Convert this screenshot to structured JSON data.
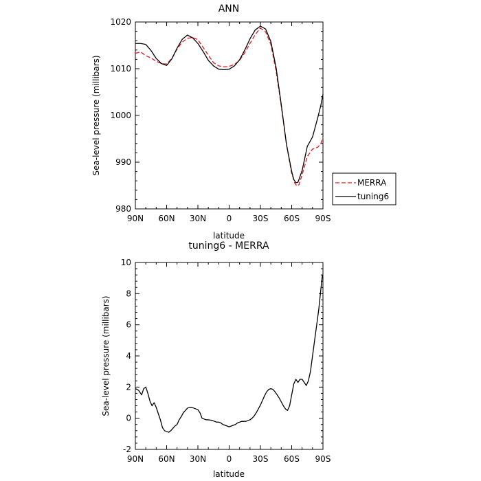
{
  "chart_data": [
    {
      "type": "line",
      "title": "ANN",
      "xlabel": "latitude",
      "ylabel": "Sea-level pressure (millibars)",
      "xlim": [
        90,
        -90
      ],
      "ylim": [
        980,
        1020
      ],
      "xticks": [
        {
          "value": 90,
          "label": "90N"
        },
        {
          "value": 60,
          "label": "60N"
        },
        {
          "value": 30,
          "label": "30N"
        },
        {
          "value": 0,
          "label": "0"
        },
        {
          "value": -30,
          "label": "30S"
        },
        {
          "value": -60,
          "label": "60S"
        },
        {
          "value": -90,
          "label": "90S"
        }
      ],
      "yticks": [
        {
          "value": 980,
          "label": "980"
        },
        {
          "value": 990,
          "label": "990"
        },
        {
          "value": 1000,
          "label": "1000"
        },
        {
          "value": 1010,
          "label": "1010"
        },
        {
          "value": 1020,
          "label": "1020"
        }
      ],
      "legend": {
        "placement": "right-outside",
        "entries": [
          "MERRA",
          "tuning6"
        ]
      },
      "series": [
        {
          "name": "MERRA",
          "color": "#e8141b",
          "dash": "dashed",
          "x": [
            90,
            85,
            80,
            75,
            70,
            65,
            60,
            55,
            50,
            45,
            40,
            35,
            30,
            25,
            20,
            15,
            10,
            5,
            0,
            -5,
            -10,
            -15,
            -20,
            -25,
            -30,
            -35,
            -40,
            -45,
            -50,
            -55,
            -60,
            -63,
            -65,
            -67,
            -70,
            -75,
            -80,
            -85,
            -88,
            -90
          ],
          "y": [
            1013.3,
            1013.6,
            1012.8,
            1012.3,
            1011.6,
            1011.1,
            1011.0,
            1012.2,
            1014.2,
            1015.7,
            1016.5,
            1016.7,
            1016.2,
            1014.6,
            1012.9,
            1011.3,
            1010.6,
            1010.4,
            1010.5,
            1010.9,
            1011.8,
            1013.4,
            1015.4,
            1017.3,
            1018.7,
            1017.9,
            1015.2,
            1009.6,
            1002.0,
            993.8,
            987.6,
            985.5,
            984.9,
            985.2,
            987.3,
            991.2,
            992.8,
            993.2,
            994.0,
            995.3
          ]
        },
        {
          "name": "tuning6",
          "color": "#000000",
          "dash": "solid",
          "x": [
            90,
            85,
            80,
            75,
            70,
            65,
            60,
            55,
            50,
            45,
            40,
            35,
            30,
            25,
            20,
            15,
            10,
            5,
            0,
            -5,
            -10,
            -15,
            -20,
            -25,
            -30,
            -35,
            -40,
            -45,
            -50,
            -55,
            -60,
            -62,
            -64,
            -66,
            -70,
            -75,
            -80,
            -85,
            -88,
            -90
          ],
          "y": [
            1015.4,
            1015.4,
            1015.2,
            1013.9,
            1012.2,
            1011.1,
            1010.7,
            1012.1,
            1014.4,
            1016.3,
            1017.2,
            1016.6,
            1015.4,
            1013.7,
            1011.8,
            1010.6,
            1009.9,
            1009.8,
            1009.9,
            1010.6,
            1011.9,
            1014.0,
            1016.4,
            1018.3,
            1019.1,
            1018.5,
            1015.8,
            1010.3,
            1002.3,
            993.8,
            988.0,
            986.3,
            985.6,
            985.7,
            988.2,
            993.4,
            995.4,
            999.5,
            1002.2,
            1004.5
          ]
        }
      ]
    },
    {
      "type": "line",
      "title": "tuning6 - MERRA",
      "xlabel": "latitude",
      "ylabel": "Sea-level pressure (millibars)",
      "xlim": [
        90,
        -90
      ],
      "ylim": [
        -2,
        10
      ],
      "xticks": [
        {
          "value": 90,
          "label": "90N"
        },
        {
          "value": 60,
          "label": "60N"
        },
        {
          "value": 30,
          "label": "30N"
        },
        {
          "value": 0,
          "label": "0"
        },
        {
          "value": -30,
          "label": "30S"
        },
        {
          "value": -60,
          "label": "60S"
        },
        {
          "value": -90,
          "label": "90S"
        }
      ],
      "yticks": [
        {
          "value": -2,
          "label": "-2"
        },
        {
          "value": 0,
          "label": "0"
        },
        {
          "value": 2,
          "label": "2"
        },
        {
          "value": 4,
          "label": "4"
        },
        {
          "value": 6,
          "label": "6"
        },
        {
          "value": 8,
          "label": "8"
        },
        {
          "value": 10,
          "label": "10"
        }
      ],
      "series": [
        {
          "name": "",
          "color": "#000000",
          "dash": "solid",
          "x": [
            90,
            87,
            84,
            82,
            80,
            78,
            76,
            74,
            72,
            70,
            68,
            66,
            64,
            62,
            60,
            58,
            56,
            54,
            52,
            50,
            48,
            46,
            44,
            42,
            40,
            38,
            36,
            34,
            32,
            30,
            28,
            26,
            24,
            22,
            20,
            18,
            16,
            14,
            12,
            10,
            8,
            6,
            4,
            2,
            0,
            -2,
            -4,
            -6,
            -8,
            -10,
            -12,
            -14,
            -16,
            -18,
            -20,
            -22,
            -24,
            -26,
            -28,
            -30,
            -32,
            -34,
            -36,
            -38,
            -40,
            -42,
            -44,
            -46,
            -48,
            -50,
            -52,
            -54,
            -56,
            -58,
            -60,
            -62,
            -64,
            -66,
            -68,
            -70,
            -72,
            -74,
            -76,
            -78,
            -80,
            -82,
            -84,
            -86,
            -88,
            -89.5
          ],
          "y": [
            1.9,
            1.8,
            1.5,
            1.9,
            2.0,
            1.6,
            1.1,
            0.8,
            1.0,
            0.7,
            0.3,
            -0.1,
            -0.6,
            -0.8,
            -0.85,
            -0.9,
            -0.8,
            -0.65,
            -0.5,
            -0.4,
            -0.1,
            0.1,
            0.35,
            0.5,
            0.65,
            0.7,
            0.7,
            0.65,
            0.6,
            0.55,
            0.35,
            0.0,
            -0.05,
            -0.1,
            -0.1,
            -0.12,
            -0.15,
            -0.2,
            -0.25,
            -0.25,
            -0.3,
            -0.4,
            -0.45,
            -0.5,
            -0.55,
            -0.5,
            -0.45,
            -0.4,
            -0.3,
            -0.25,
            -0.2,
            -0.2,
            -0.2,
            -0.15,
            -0.1,
            0.0,
            0.15,
            0.35,
            0.6,
            0.85,
            1.15,
            1.45,
            1.7,
            1.85,
            1.9,
            1.85,
            1.7,
            1.5,
            1.3,
            1.05,
            0.8,
            0.6,
            0.5,
            0.8,
            1.5,
            2.2,
            2.5,
            2.3,
            2.5,
            2.5,
            2.3,
            2.1,
            2.4,
            3.0,
            4.0,
            5.0,
            6.0,
            7.0,
            8.3,
            9.2
          ]
        }
      ]
    }
  ]
}
